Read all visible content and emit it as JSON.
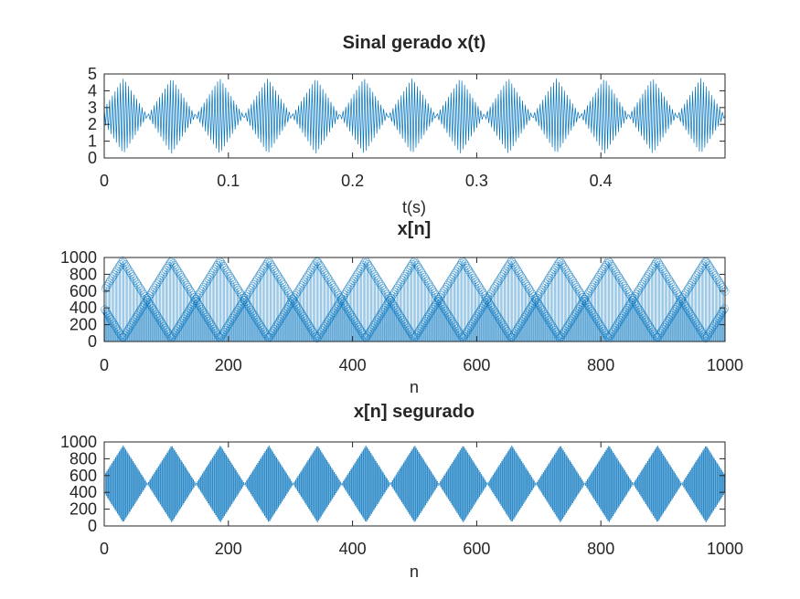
{
  "chart_data": [
    {
      "type": "line",
      "title": "Sinal gerado x(t)",
      "xlabel": "t(s)",
      "ylabel": "",
      "xlim": [
        0,
        0.5
      ],
      "ylim": [
        0,
        5
      ],
      "xticks": [
        0,
        0.1,
        0.2,
        0.3,
        0.4
      ],
      "xtick_labels": [
        "0",
        "0.1",
        "0.2",
        "0.3",
        "0.4"
      ],
      "yticks": [
        0,
        1,
        2,
        3,
        4,
        5
      ],
      "ytick_labels": [
        "0",
        "1",
        "2",
        "3",
        "4",
        "5"
      ],
      "signal": {
        "offset": 2.5,
        "envelope_peak_amplitude": 2.25,
        "envelope_period": 0.0775,
        "envelope_first_peak": 0.0155,
        "carrier_samples": 460
      },
      "color": "#0072BD",
      "grid": false
    },
    {
      "type": "stem",
      "title": "x[n]",
      "xlabel": "n",
      "ylabel": "",
      "xlim": [
        0,
        1000
      ],
      "ylim": [
        0,
        1000
      ],
      "xticks": [
        0,
        200,
        400,
        600,
        800,
        1000
      ],
      "xtick_labels": [
        "0",
        "200",
        "400",
        "600",
        "800",
        "1000"
      ],
      "yticks": [
        0,
        200,
        400,
        600,
        800,
        1000
      ],
      "ytick_labels": [
        "0",
        "200",
        "400",
        "600",
        "800",
        "1000"
      ],
      "signal": {
        "n_start": 1,
        "n_end": 1000,
        "series_high": {
          "start": 790,
          "peaks_at": [
            30,
            185,
            342,
            497,
            654,
            810,
            967
          ],
          "peak": 962,
          "trough": 38
        },
        "series_low": {
          "start": 205,
          "troughs_at": [
            30,
            185,
            342,
            497,
            654,
            810,
            967
          ],
          "peak": 962,
          "trough": 38
        }
      },
      "color": "#0072BD",
      "grid": false
    },
    {
      "type": "line",
      "title": "x[n] segurado",
      "xlabel": "n",
      "ylabel": "",
      "xlim": [
        0,
        1000
      ],
      "ylim": [
        0,
        1000
      ],
      "xticks": [
        0,
        200,
        400,
        600,
        800,
        1000
      ],
      "xtick_labels": [
        "0",
        "200",
        "400",
        "600",
        "800",
        "1000"
      ],
      "yticks": [
        0,
        200,
        400,
        600,
        800,
        1000
      ],
      "ytick_labels": [
        "0",
        "200",
        "400",
        "600",
        "800",
        "1000"
      ],
      "signal": {
        "offset": 500,
        "envelope_peak_amplitude": 455,
        "envelope_period": 156.5,
        "envelope_first_peak": 30,
        "n_end": 1000
      },
      "color": "#0072BD",
      "grid": false
    }
  ]
}
